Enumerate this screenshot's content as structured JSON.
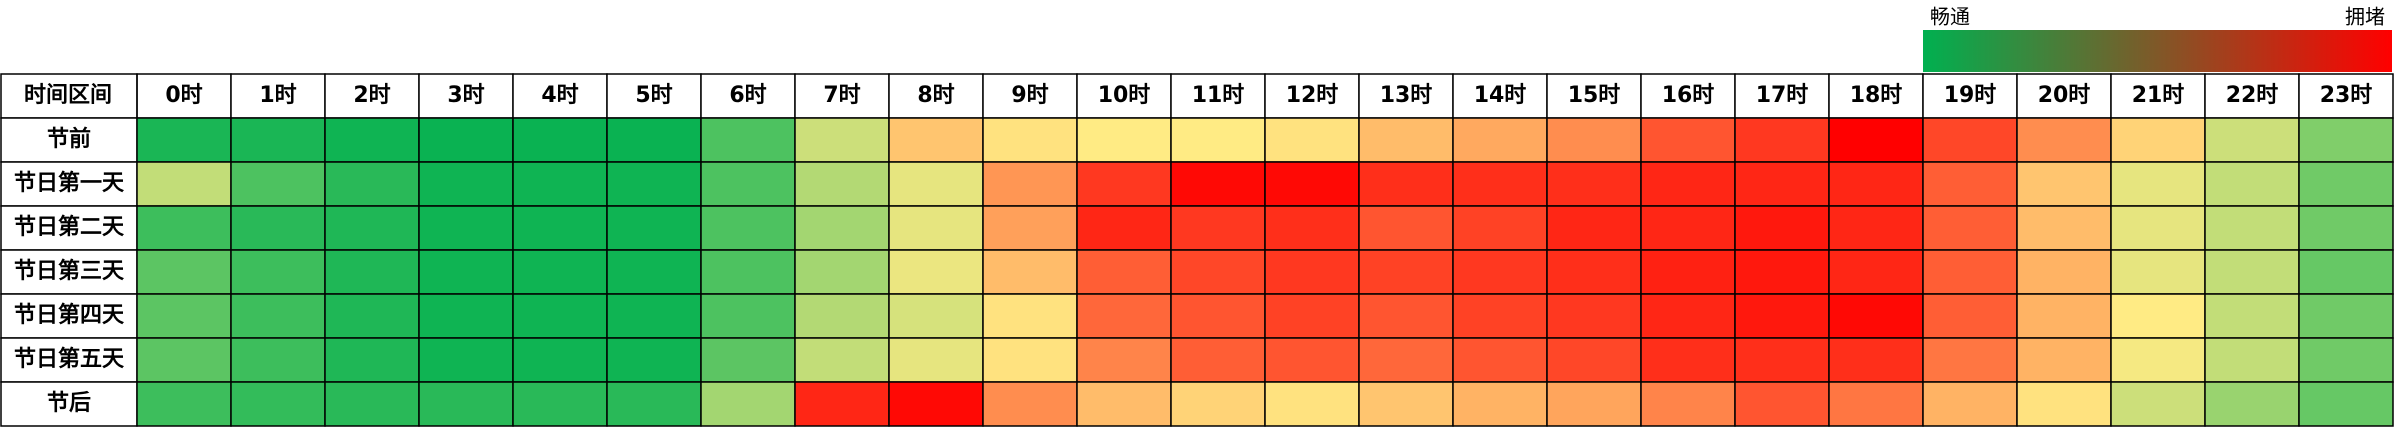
{
  "chart_data": {
    "type": "heatmap",
    "corner_label": "时间区间",
    "x_categories": [
      "0时",
      "1时",
      "2时",
      "3时",
      "4时",
      "5时",
      "6时",
      "7时",
      "8时",
      "9时",
      "10时",
      "11时",
      "12时",
      "13时",
      "14时",
      "15时",
      "16时",
      "17时",
      "18时",
      "19时",
      "20时",
      "21时",
      "22时",
      "23时"
    ],
    "y_categories": [
      "节前",
      "节日第一天",
      "节日第二天",
      "节日第三天",
      "节日第四天",
      "节日第五天",
      "节后"
    ],
    "values": [
      [
        5,
        5,
        3,
        2,
        2,
        2,
        15,
        40,
        58,
        52,
        50,
        50,
        52,
        60,
        64,
        70,
        82,
        88,
        100,
        85,
        70,
        55,
        40,
        25
      ],
      [
        38,
        15,
        8,
        3,
        3,
        3,
        15,
        35,
        45,
        68,
        88,
        98,
        98,
        90,
        90,
        90,
        92,
        92,
        92,
        80,
        58,
        45,
        38,
        22
      ],
      [
        12,
        8,
        6,
        3,
        3,
        3,
        15,
        32,
        45,
        66,
        92,
        88,
        90,
        82,
        86,
        92,
        92,
        95,
        92,
        80,
        60,
        45,
        38,
        22
      ],
      [
        18,
        12,
        6,
        3,
        3,
        3,
        15,
        32,
        46,
        60,
        80,
        85,
        88,
        86,
        88,
        90,
        93,
        95,
        92,
        80,
        62,
        45,
        38,
        20
      ],
      [
        18,
        12,
        6,
        3,
        3,
        3,
        15,
        35,
        42,
        52,
        78,
        82,
        86,
        82,
        86,
        88,
        92,
        95,
        98,
        80,
        62,
        50,
        38,
        22
      ],
      [
        18,
        12,
        6,
        3,
        3,
        3,
        18,
        38,
        45,
        52,
        72,
        80,
        82,
        78,
        82,
        85,
        90,
        90,
        90,
        75,
        62,
        48,
        38,
        22
      ],
      [
        12,
        10,
        8,
        8,
        8,
        8,
        32,
        92,
        98,
        70,
        60,
        55,
        52,
        58,
        62,
        65,
        72,
        82,
        75,
        62,
        52,
        40,
        30,
        20
      ]
    ],
    "clim": [
      0,
      100
    ],
    "colors": [
      "#00b050",
      "#ffeb84",
      "#ff0000"
    ],
    "legend": {
      "low_label": "畅通",
      "high_label": "拥堵"
    }
  }
}
